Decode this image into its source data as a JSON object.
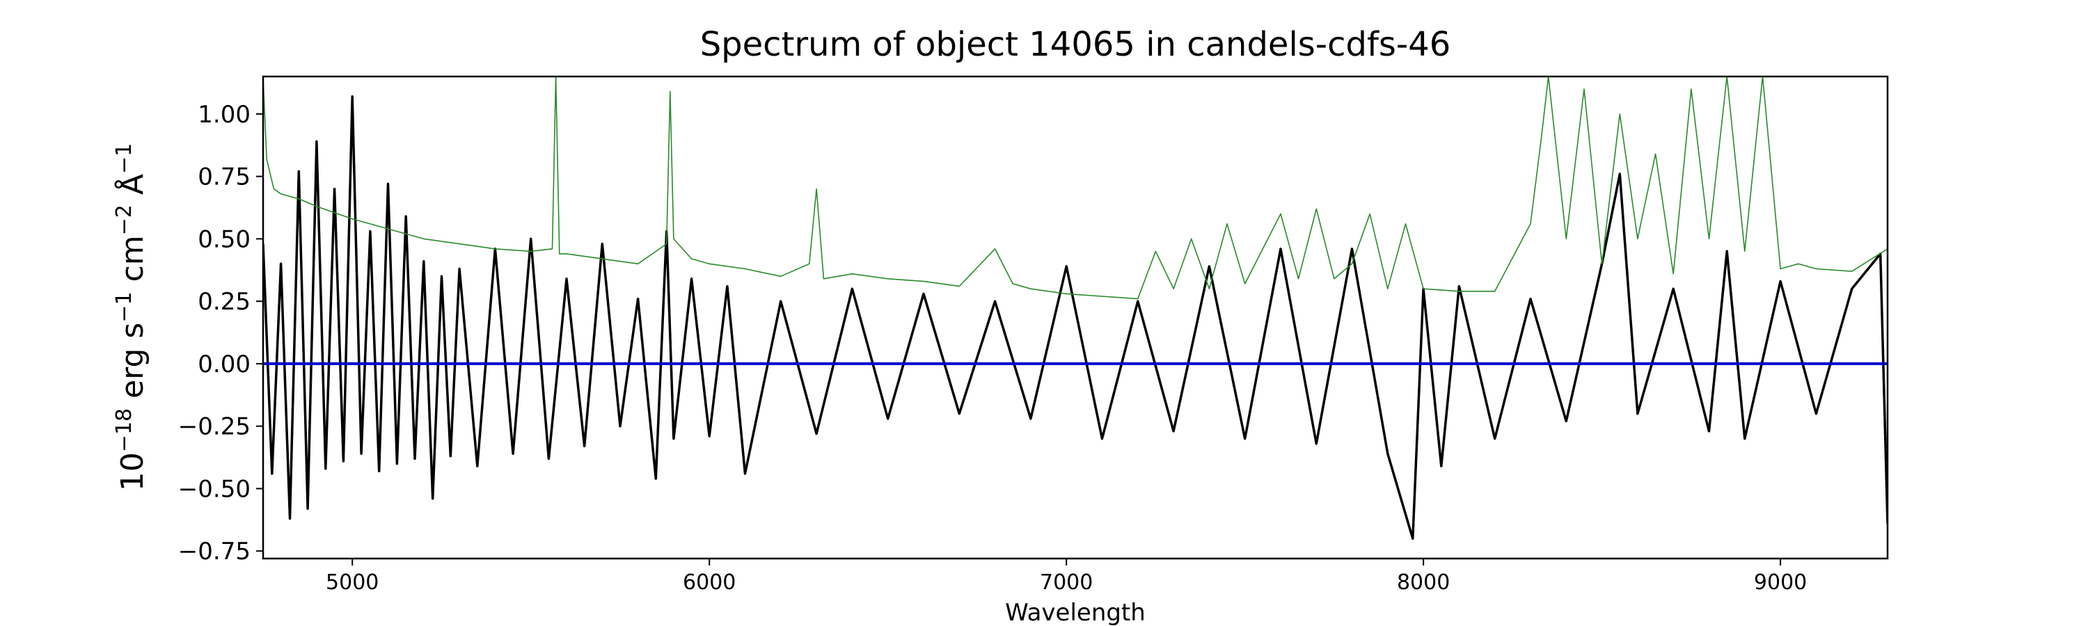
{
  "chart_data": {
    "type": "line",
    "title": "Spectrum of object 14065 in candels-cdfs-46",
    "xlabel": "Wavelength",
    "ylabel": {
      "base": "10",
      "exp": "−18",
      "unit1": " erg s",
      "exp1": "−1",
      "unit2": " cm",
      "exp2": "−2",
      "unit3": " Å",
      "exp3": "−1"
    },
    "xlim": [
      4750,
      9300
    ],
    "ylim": [
      -0.78,
      1.15
    ],
    "x_ticks": [
      5000,
      6000,
      7000,
      8000,
      9000
    ],
    "x_tick_labels": [
      "5000",
      "6000",
      "7000",
      "8000",
      "9000"
    ],
    "y_ticks": [
      -0.75,
      -0.5,
      -0.25,
      0.0,
      0.25,
      0.5,
      0.75,
      1.0
    ],
    "y_tick_labels": [
      "−0.75",
      "−0.50",
      "−0.25",
      "0.00",
      "0.25",
      "0.50",
      "0.75",
      "1.00"
    ],
    "grid": false,
    "legend": "none",
    "series": [
      {
        "color": "#000000",
        "x": [
          4750,
          4775,
          4800,
          4825,
          4850,
          4875,
          4900,
          4925,
          4950,
          4975,
          5000,
          5025,
          5050,
          5075,
          5100,
          5125,
          5150,
          5175,
          5200,
          5225,
          5250,
          5275,
          5300,
          5350,
          5400,
          5450,
          5500,
          5550,
          5600,
          5650,
          5700,
          5750,
          5800,
          5850,
          5880,
          5900,
          5950,
          6000,
          6050,
          6100,
          6200,
          6300,
          6400,
          6500,
          6600,
          6700,
          6800,
          6900,
          7000,
          7100,
          7200,
          7300,
          7400,
          7500,
          7600,
          7700,
          7800,
          7900,
          7970,
          8000,
          8050,
          8100,
          8200,
          8300,
          8400,
          8500,
          8550,
          8600,
          8700,
          8800,
          8850,
          8900,
          9000,
          9100,
          9200,
          9280,
          9300
        ],
        "y": [
          0.48,
          -0.44,
          0.4,
          -0.62,
          0.77,
          -0.58,
          0.89,
          -0.42,
          0.7,
          -0.39,
          1.07,
          -0.36,
          0.53,
          -0.43,
          0.72,
          -0.4,
          0.59,
          -0.38,
          0.41,
          -0.54,
          0.35,
          -0.37,
          0.38,
          -0.41,
          0.46,
          -0.36,
          0.5,
          -0.38,
          0.34,
          -0.33,
          0.48,
          -0.25,
          0.26,
          -0.46,
          0.53,
          -0.3,
          0.34,
          -0.29,
          0.31,
          -0.44,
          0.25,
          -0.28,
          0.3,
          -0.22,
          0.28,
          -0.2,
          0.25,
          -0.22,
          0.39,
          -0.3,
          0.25,
          -0.27,
          0.39,
          -0.3,
          0.46,
          -0.32,
          0.46,
          -0.36,
          -0.7,
          0.3,
          -0.41,
          0.31,
          -0.3,
          0.26,
          -0.23,
          0.4,
          0.76,
          -0.2,
          0.3,
          -0.27,
          0.45,
          -0.3,
          0.33,
          -0.2,
          0.3,
          0.44,
          -0.64
        ]
      },
      {
        "color": "#2a8a2a",
        "x": [
          4750,
          4760,
          4780,
          4800,
          4850,
          4900,
          5000,
          5100,
          5200,
          5300,
          5400,
          5500,
          5560,
          5570,
          5580,
          5600,
          5700,
          5800,
          5880,
          5890,
          5900,
          5950,
          6000,
          6100,
          6200,
          6280,
          6300,
          6320,
          6400,
          6500,
          6600,
          6700,
          6800,
          6850,
          6900,
          7000,
          7100,
          7200,
          7250,
          7300,
          7350,
          7400,
          7450,
          7500,
          7600,
          7650,
          7700,
          7750,
          7800,
          7850,
          7900,
          7950,
          8000,
          8100,
          8200,
          8300,
          8330,
          8350,
          8400,
          8450,
          8500,
          8550,
          8600,
          8650,
          8700,
          8750,
          8800,
          8850,
          8900,
          8950,
          9000,
          9050,
          9100,
          9200,
          9300
        ],
        "y": [
          1.15,
          0.82,
          0.7,
          0.68,
          0.66,
          0.63,
          0.58,
          0.54,
          0.5,
          0.48,
          0.46,
          0.45,
          0.46,
          1.15,
          0.44,
          0.44,
          0.42,
          0.4,
          0.48,
          1.09,
          0.5,
          0.42,
          0.4,
          0.38,
          0.35,
          0.4,
          0.7,
          0.34,
          0.36,
          0.34,
          0.33,
          0.31,
          0.46,
          0.32,
          0.3,
          0.28,
          0.27,
          0.26,
          0.45,
          0.3,
          0.5,
          0.3,
          0.56,
          0.32,
          0.6,
          0.34,
          0.62,
          0.34,
          0.4,
          0.6,
          0.3,
          0.56,
          0.3,
          0.29,
          0.29,
          0.56,
          0.9,
          1.15,
          0.5,
          1.1,
          0.4,
          1.0,
          0.5,
          0.84,
          0.36,
          1.1,
          0.5,
          1.15,
          0.45,
          1.15,
          0.38,
          0.4,
          0.38,
          0.37,
          0.46
        ]
      },
      {
        "color": "#0000cc",
        "x": [
          4750,
          9300
        ],
        "y": [
          0.0,
          0.0
        ]
      }
    ]
  }
}
